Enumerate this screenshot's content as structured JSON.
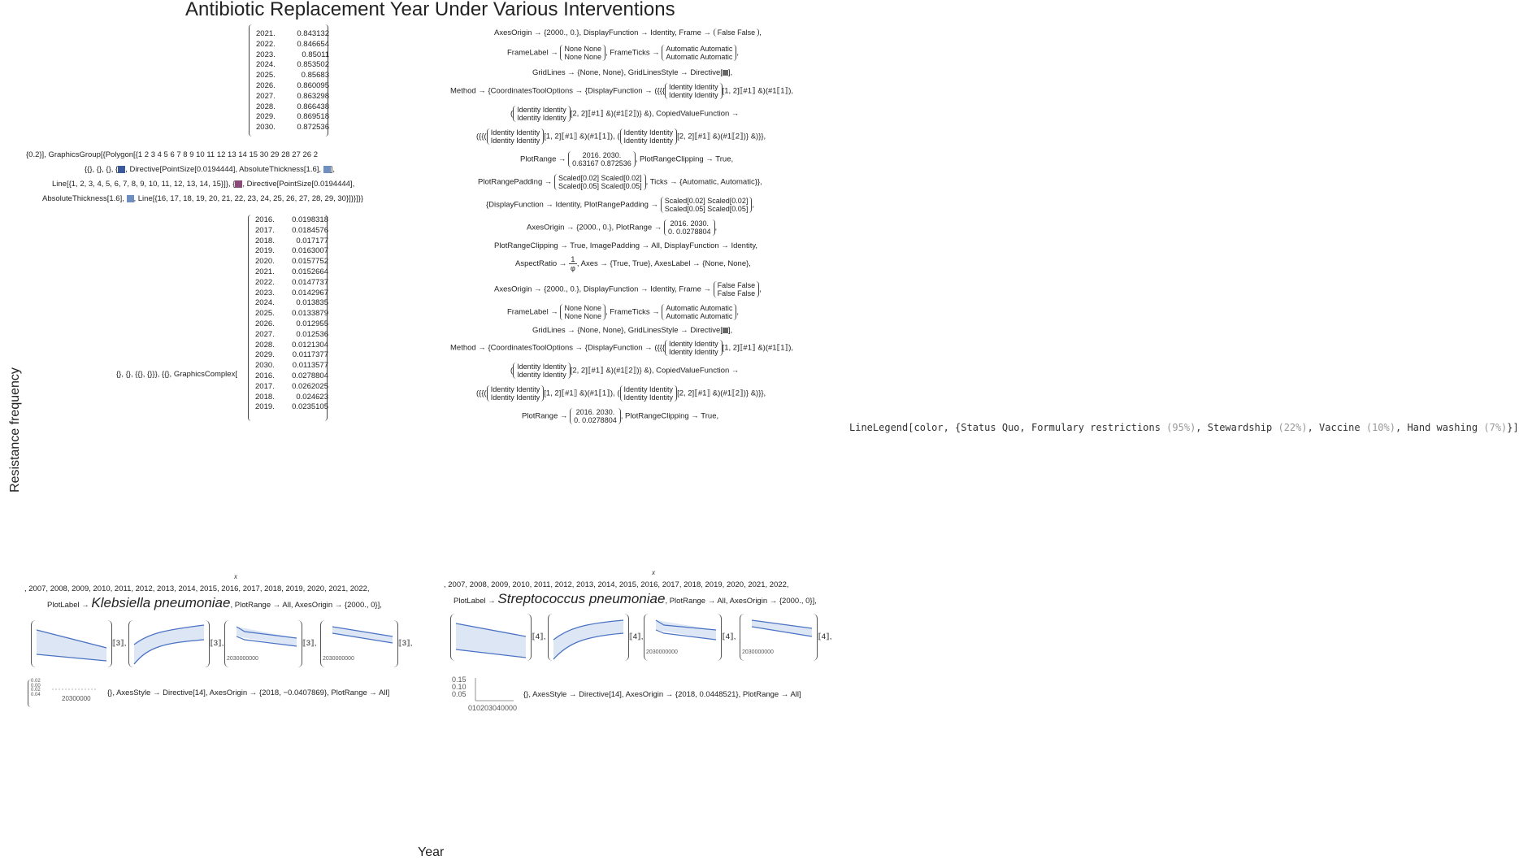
{
  "plot": {
    "title": "Antibiotic Replacement Year Under Various Interventions",
    "ylabel": "Resistance frequency",
    "xlabel": "Year"
  },
  "colors": {
    "series_blue": "#3c5a9a",
    "series_purple": "#8a4a7a",
    "band_fill": "#dce6f4",
    "band_line": "#4a72c4"
  },
  "table_top": {
    "rows": [
      {
        "year": "2021.",
        "value": "0.843132"
      },
      {
        "year": "2022.",
        "value": "0.846654"
      },
      {
        "year": "2023.",
        "value": "0.85011"
      },
      {
        "year": "2024.",
        "value": "0.853502"
      },
      {
        "year": "2025.",
        "value": "0.85683"
      },
      {
        "year": "2026.",
        "value": "0.860095"
      },
      {
        "year": "2027.",
        "value": "0.863298"
      },
      {
        "year": "2028.",
        "value": "0.866438"
      },
      {
        "year": "2029.",
        "value": "0.869518"
      },
      {
        "year": "2030.",
        "value": "0.872536"
      }
    ]
  },
  "graphics_group": {
    "line1": "{0.2}], GraphicsGroup[{Polygon[{1  2  3  4  5  6  7  8  9  10  11  12  13  14  15  30  29  28  27  26  2",
    "line2a": "{{}, {}, {}, {",
    "line2b": ", Directive[PointSize[0.0194444], AbsoluteThickness[1.6],",
    "line2c": "],",
    "line3a": "Line[{1, 2, 3, 4, 5, 6, 7, 8, 9, 10, 11, 12, 13, 14, 15}]}, {",
    "line3b": ", Directive[PointSize[0.0194444],",
    "line4a": "AbsoluteThickness[1.6],",
    "line4b": ", Line[{16, 17, 18, 19, 20, 21, 22, 23, 24, 25, 26, 27, 28, 29, 30}]}}]}}"
  },
  "table_mid": {
    "prefix": "{}, {}, {{}, {}}}, {{}, GraphicsComplex[",
    "rows": [
      {
        "year": "2016.",
        "value": "0.0198318"
      },
      {
        "year": "2017.",
        "value": "0.0184576"
      },
      {
        "year": "2018.",
        "value": "0.017177"
      },
      {
        "year": "2019.",
        "value": "0.0163007"
      },
      {
        "year": "2020.",
        "value": "0.0157752"
      },
      {
        "year": "2021.",
        "value": "0.0152664"
      },
      {
        "year": "2022.",
        "value": "0.0147737"
      },
      {
        "year": "2023.",
        "value": "0.0142967"
      },
      {
        "year": "2024.",
        "value": "0.013835"
      },
      {
        "year": "2025.",
        "value": "0.0133879"
      },
      {
        "year": "2026.",
        "value": "0.012955"
      },
      {
        "year": "2027.",
        "value": "0.012536"
      },
      {
        "year": "2028.",
        "value": "0.0121304"
      },
      {
        "year": "2029.",
        "value": "0.0117377"
      },
      {
        "year": "2030.",
        "value": "0.0113577"
      },
      {
        "year": "2016.",
        "value": "0.0278804"
      },
      {
        "year": "2017.",
        "value": "0.0262025"
      },
      {
        "year": "2018.",
        "value": "0.024623"
      },
      {
        "year": "2019.",
        "value": "0.0235105"
      }
    ]
  },
  "options": {
    "r1a": "AxesOrigin → {2000., 0.}, DisplayFunction → Identity, Frame →",
    "r1m": [
      "False  False"
    ],
    "r2a": "FrameLabel →",
    "r2m1": [
      "None  None",
      "None  None"
    ],
    "r2b": ", FrameTicks →",
    "r2m2": [
      "Automatic  Automatic",
      "Automatic  Automatic"
    ],
    "r3": "GridLines → {None, None}, GridLinesStyle → Directive[",
    "r4a": "Method → {CoordinatesToolOptions → {DisplayFunction → ({{{",
    "ident": [
      "Identity  Identity",
      "Identity  Identity"
    ],
    "r4b": "[1, 2]⟦#1⟧ &)(#1⟦1⟧),",
    "r5b": "[2, 2]⟦#1⟧ &)(#1⟦2⟧)} &), CopiedValueFunction →",
    "r6a": "[1, 2]⟦#1⟧ &)(#1⟦1⟧),",
    "r6b": "[2, 2]⟦#1⟧ &)(#1⟦2⟧)} &)}},",
    "r7a": "PlotRange →",
    "r7m": [
      "2016.      2030.",
      "0.63167   0.872536"
    ],
    "r7b": ", PlotRangeClipping → True,",
    "r8a": "PlotRangePadding →",
    "r8m": [
      "Scaled[0.02]  Scaled[0.02]",
      "Scaled[0.05]  Scaled[0.05]"
    ],
    "r8b": ", Ticks → {Automatic, Automatic}},",
    "r9a": "{DisplayFunction → Identity, PlotRangePadding →",
    "r10a": "AxesOrigin → {2000., 0.}, PlotRange →",
    "r10m": [
      "2016.      2030.",
      "0.      0.0278804"
    ],
    "r11": "PlotRangeClipping → True, ImagePadding → All, DisplayFunction → Identity,",
    "r12a": "AspectRatio →",
    "r12frac_num": "1",
    "r12frac_den": "φ",
    "r12b": ", Axes → {True, True}, AxesLabel → {None, None},",
    "r13m": [
      "False  False",
      "False  False"
    ],
    "r17b": ", PlotRangeClipping → True,"
  },
  "legend": {
    "prefix": "LineLegend[color, {",
    "items": [
      {
        "label": "Status Quo",
        "pct": ""
      },
      {
        "label": "Formulary restrictions",
        "pct": "(95%)"
      },
      {
        "label": "Stewardship",
        "pct": "(22%)"
      },
      {
        "label": "Vaccine",
        "pct": "(10%)"
      },
      {
        "label": "Hand washing",
        "pct": "(7%)"
      }
    ],
    "suffix": "}]"
  },
  "panel_left": {
    "x_var": "x",
    "years_line": ", 2007, 2008, 2009, 2010, 2011, 2012, 2013, 2014, 2015, 2016, 2017, 2018, 2019, 2020, 2021, 2022,",
    "plotlabel_prefix": "PlotLabel →",
    "plotlabel_name": "Klebsiella pneumoniae",
    "plotlabel_suffix": ", PlotRange → All, AxesOrigin → {2000., 0}],",
    "index": "⟦3⟧,",
    "tick_text": "2030000000",
    "axis_text": "20300000",
    "bottom": "{}, AxesStyle → Directive[14], AxesOrigin → {2018, −0.0407869}, PlotRange → All]",
    "bottom_ticks": [
      "0.02",
      "0.00",
      "0.02",
      "0.04"
    ]
  },
  "panel_right": {
    "x_var": "x",
    "years_line": ", 2007, 2008, 2009, 2010, 2011, 2012, 2013, 2014, 2015, 2016, 2017, 2018, 2019, 2020, 2021, 2022,",
    "plotlabel_prefix": "PlotLabel →",
    "plotlabel_name": "Streptococcus pneumoniae",
    "plotlabel_suffix": ", PlotRange → All, AxesOrigin → {2000., 0}],",
    "index": "⟦4⟧,",
    "tick_text": "2030000000",
    "bottom": "{}, AxesStyle → Directive[14], AxesOrigin → {2018, 0.0448521}, PlotRange → All]",
    "bottom_ticks": [
      "0.15",
      "0.10",
      "0.05"
    ],
    "bottom_axis": "010203040000"
  }
}
